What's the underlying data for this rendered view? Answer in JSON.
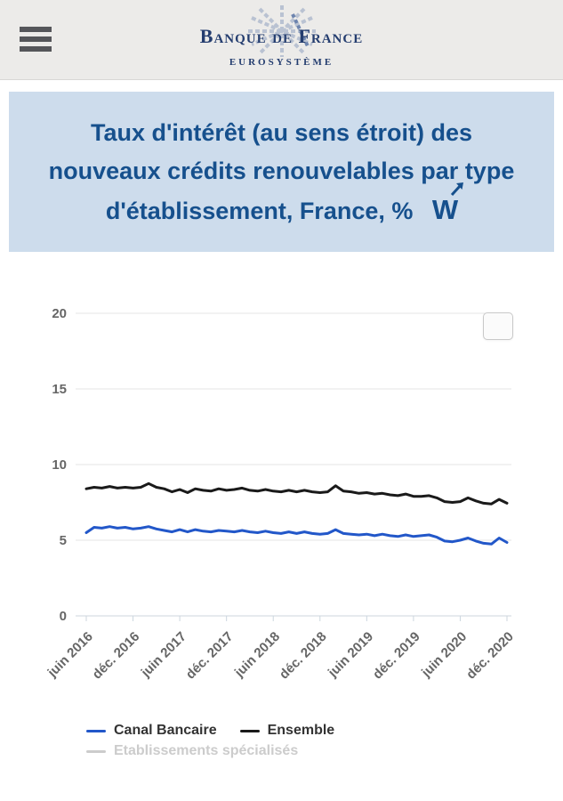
{
  "header": {
    "menu_icon": "hamburger-icon",
    "logo_title": "Banque de France",
    "logo_subtitle": "EUROSYSTÈME"
  },
  "title_panel": {
    "title": "Taux d'intérêt (au sens étroit) des nouveaux crédits renouvelables par type d'établissement, France, %",
    "icon": "webstat-w-arrow-icon",
    "background_color": "#cddcec",
    "text_color": "#16508d"
  },
  "chart_data": {
    "type": "line",
    "title": "",
    "xlabel": "",
    "ylabel": "",
    "ylim": [
      0,
      20
    ],
    "yticks": [
      0,
      5,
      10,
      15,
      20
    ],
    "grid": true,
    "legend_position": "bottom",
    "x_start": "juin 2016",
    "x_end": "déc. 2020",
    "x_frequency": "monthly",
    "x_tick_labels": [
      "juin 2016",
      "déc. 2016",
      "juin 2017",
      "déc. 2017",
      "juin 2018",
      "déc. 2018",
      "juin 2019",
      "déc. 2019",
      "juin 2020",
      "déc. 2020"
    ],
    "tick_interval_months": 6,
    "series": [
      {
        "name": "Canal Bancaire",
        "color": "#2257c9",
        "visible": true,
        "values": [
          5.5,
          5.85,
          5.8,
          5.9,
          5.8,
          5.85,
          5.75,
          5.8,
          5.9,
          5.75,
          5.65,
          5.55,
          5.7,
          5.55,
          5.7,
          5.6,
          5.55,
          5.65,
          5.6,
          5.55,
          5.65,
          5.55,
          5.5,
          5.6,
          5.5,
          5.45,
          5.55,
          5.45,
          5.55,
          5.45,
          5.4,
          5.45,
          5.7,
          5.45,
          5.4,
          5.35,
          5.4,
          5.3,
          5.4,
          5.3,
          5.25,
          5.35,
          5.25,
          5.3,
          5.35,
          5.2,
          4.95,
          4.9,
          5.0,
          5.15,
          4.95,
          4.8,
          4.75,
          5.15,
          4.85
        ]
      },
      {
        "name": "Ensemble",
        "color": "#1a1a1a",
        "visible": true,
        "values": [
          8.4,
          8.5,
          8.45,
          8.55,
          8.45,
          8.5,
          8.45,
          8.5,
          8.75,
          8.5,
          8.4,
          8.2,
          8.35,
          8.15,
          8.4,
          8.3,
          8.25,
          8.4,
          8.3,
          8.35,
          8.45,
          8.3,
          8.25,
          8.35,
          8.25,
          8.2,
          8.3,
          8.2,
          8.3,
          8.2,
          8.15,
          8.2,
          8.6,
          8.25,
          8.2,
          8.1,
          8.15,
          8.05,
          8.1,
          8.0,
          7.95,
          8.05,
          7.9,
          7.9,
          7.95,
          7.8,
          7.55,
          7.5,
          7.55,
          7.8,
          7.6,
          7.45,
          7.4,
          7.7,
          7.45
        ]
      },
      {
        "name": "Etablissements spécialisés",
        "color": "#cccccc",
        "visible": false,
        "values": []
      }
    ]
  },
  "chart_ui": {
    "context_menu_button": "chart-context-menu-button"
  },
  "colors": {
    "header_bg": "#ecebe9",
    "grid_line": "#e6e6e6",
    "axis_line": "#ccd6de",
    "tick_label": "#666666",
    "legend_enabled": "#333333",
    "legend_disabled": "#cccccc"
  }
}
